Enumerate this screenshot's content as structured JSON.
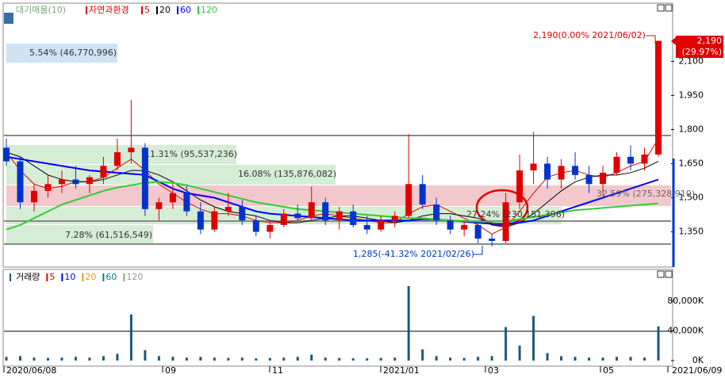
{
  "chart_data": [
    {
      "type": "candlestick",
      "title": "자연과환경",
      "overlay_label": "대기매물(10)",
      "open": [
        1720,
        1660,
        1480,
        1530,
        1560,
        1580,
        1560,
        1590,
        1640,
        1700,
        1720,
        1450,
        1480,
        1520,
        1440,
        1360,
        1440,
        1460,
        1400,
        1350,
        1380,
        1430,
        1410,
        1480,
        1400,
        1440,
        1380,
        1360,
        1400,
        1420,
        1560,
        1470,
        1400,
        1360,
        1380,
        1320,
        1310,
        1480,
        1620,
        1650,
        1580,
        1640,
        1600,
        1560,
        1610,
        1680,
        1650,
        1690
      ],
      "high": [
        1760,
        1680,
        1560,
        1600,
        1620,
        1640,
        1600,
        1680,
        1760,
        1930,
        1740,
        1500,
        1560,
        1550,
        1480,
        1460,
        1520,
        1490,
        1420,
        1400,
        1450,
        1470,
        1550,
        1500,
        1460,
        1470,
        1420,
        1420,
        1440,
        1780,
        1600,
        1500,
        1420,
        1400,
        1390,
        1340,
        1520,
        1690,
        1790,
        1680,
        1670,
        1700,
        1640,
        1640,
        1700,
        1730,
        1720,
        2190
      ],
      "low": [
        1640,
        1450,
        1440,
        1500,
        1520,
        1540,
        1520,
        1560,
        1620,
        1650,
        1420,
        1400,
        1450,
        1420,
        1340,
        1350,
        1420,
        1380,
        1330,
        1320,
        1370,
        1400,
        1400,
        1380,
        1360,
        1370,
        1340,
        1350,
        1370,
        1410,
        1450,
        1380,
        1340,
        1330,
        1300,
        1285,
        1300,
        1450,
        1560,
        1540,
        1540,
        1580,
        1520,
        1510,
        1600,
        1620,
        1620,
        1680
      ],
      "close": [
        1660,
        1480,
        1530,
        1560,
        1580,
        1560,
        1590,
        1640,
        1700,
        1720,
        1450,
        1480,
        1520,
        1440,
        1360,
        1440,
        1460,
        1400,
        1350,
        1380,
        1430,
        1410,
        1480,
        1400,
        1440,
        1380,
        1360,
        1400,
        1420,
        1560,
        1470,
        1400,
        1360,
        1380,
        1320,
        1310,
        1480,
        1620,
        1650,
        1580,
        1640,
        1600,
        1560,
        1610,
        1680,
        1650,
        1690,
        2190
      ],
      "up_color": "#e00000",
      "down_color": "#0033cc",
      "series": [
        {
          "name": "5",
          "color": "#e00000",
          "values": [
            1700,
            1620,
            1560,
            1540,
            1550,
            1570,
            1570,
            1590,
            1630,
            1670,
            1620,
            1560,
            1520,
            1480,
            1450,
            1430,
            1430,
            1420,
            1400,
            1390,
            1390,
            1400,
            1420,
            1430,
            1420,
            1410,
            1400,
            1390,
            1390,
            1430,
            1460,
            1470,
            1440,
            1410,
            1380,
            1340,
            1370,
            1440,
            1520,
            1590,
            1610,
            1620,
            1600,
            1590,
            1610,
            1640,
            1660,
            1760
          ]
        },
        {
          "name": "20",
          "color": "#000000",
          "values": [
            1700,
            1680,
            1640,
            1600,
            1580,
            1570,
            1570,
            1580,
            1600,
            1620,
            1620,
            1600,
            1570,
            1530,
            1490,
            1460,
            1440,
            1430,
            1420,
            1400,
            1390,
            1390,
            1400,
            1410,
            1420,
            1420,
            1410,
            1400,
            1390,
            1400,
            1420,
            1430,
            1430,
            1420,
            1410,
            1380,
            1370,
            1390,
            1430,
            1480,
            1530,
            1570,
            1590,
            1600,
            1600,
            1610,
            1630,
            1660
          ]
        },
        {
          "name": "60",
          "color": "#0000ff",
          "values": [
            1680,
            1670,
            1660,
            1650,
            1640,
            1630,
            1620,
            1615,
            1610,
            1605,
            1600,
            1570,
            1540,
            1520,
            1510,
            1500,
            1480,
            1460,
            1440,
            1430,
            1425,
            1420,
            1415,
            1410,
            1405,
            1400,
            1400,
            1400,
            1400,
            1400,
            1405,
            1405,
            1400,
            1395,
            1390,
            1385,
            1385,
            1390,
            1400,
            1420,
            1440,
            1460,
            1480,
            1500,
            1520,
            1540,
            1560,
            1580
          ]
        },
        {
          "name": "120",
          "color": "#33cc33",
          "values": [
            1360,
            1380,
            1410,
            1440,
            1470,
            1490,
            1510,
            1530,
            1545,
            1555,
            1565,
            1570,
            1565,
            1555,
            1540,
            1525,
            1510,
            1495,
            1480,
            1470,
            1460,
            1450,
            1445,
            1440,
            1435,
            1430,
            1425,
            1420,
            1415,
            1410,
            1410,
            1405,
            1400,
            1398,
            1395,
            1395,
            1398,
            1405,
            1415,
            1425,
            1435,
            1445,
            1450,
            1455,
            1460,
            1465,
            1470,
            1475
          ]
        }
      ],
      "ylim": [
        1195,
        2300
      ],
      "yticks": [
        {
          "value": 1350,
          "label": "1,350"
        },
        {
          "value": 1500,
          "label": "1,500"
        },
        {
          "value": 1650,
          "label": "1,650"
        },
        {
          "value": 1800,
          "label": "1,800"
        },
        {
          "value": 1950,
          "label": "1,950"
        },
        {
          "value": 2100,
          "label": "2,100"
        }
      ],
      "annotations": [
        "5.54% (46,770,996)",
        "11.31% (95,537,236)",
        "16.08% (135,876,082)",
        "7.28% (61,516,549)",
        "27.24% (230,151,396)",
        "32.59% (275,328,910)",
        "2,190(0.00% 2021/06/02)",
        "1,285(-41.32% 2021/02/26)"
      ],
      "current_price": {
        "label": "2,190",
        "change": "(29.97%)"
      }
    },
    {
      "type": "bar",
      "title": "거래량",
      "values": [
        5000000,
        6000000,
        4000000,
        3500000,
        4000000,
        5000000,
        4000000,
        6000000,
        9000000,
        62000000,
        14000000,
        6000000,
        5000000,
        4000000,
        5000000,
        4000000,
        3500000,
        4000000,
        3000000,
        3500000,
        4000000,
        5000000,
        8000000,
        4000000,
        3500000,
        3000000,
        3000000,
        3500000,
        4000000,
        100000000,
        15000000,
        6000000,
        4000000,
        3500000,
        5000000,
        6000000,
        45000000,
        20000000,
        60000000,
        10000000,
        6000000,
        5000000,
        4000000,
        4000000,
        5000000,
        5000000,
        4000000,
        46000000
      ],
      "color": "#1a5a7a",
      "legend": [
        {
          "name": "5",
          "color": "#e00000"
        },
        {
          "name": "10",
          "color": "#0000ff"
        },
        {
          "name": "20",
          "color": "#e0a000"
        },
        {
          "name": "60",
          "color": "#008080"
        },
        {
          "name": "120",
          "color": "#999999"
        }
      ],
      "ylim": [
        0,
        100000000
      ],
      "yticks": [
        {
          "value": 0,
          "label": "0K"
        },
        {
          "value": 40000000,
          "label": "40,000K"
        },
        {
          "value": 80000000,
          "label": "80,000K"
        }
      ],
      "x_labels": [
        "2020/06/08",
        "09",
        "11",
        "2021/01",
        "03",
        "05",
        "2021/06/09"
      ]
    }
  ]
}
